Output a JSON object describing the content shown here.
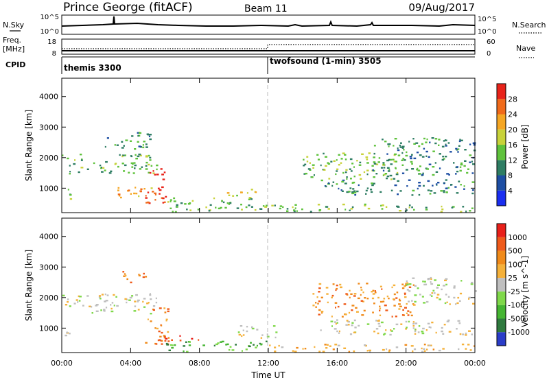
{
  "header": {
    "station": "Prince George (fitACF)",
    "beam": "Beam 11",
    "date": "09/Aug/2017"
  },
  "top_panels": {
    "nsky_label": "N.Sky",
    "nsky_ticks": [
      "10^5",
      "10^0"
    ],
    "nsearch_label": "N.Search",
    "nsearch_ticks": [
      "10^5",
      "10^0"
    ],
    "freq_label_1": "Freq.",
    "freq_label_2": "[MHz]",
    "freq_ticks": [
      "18",
      "8"
    ],
    "nave_label": "Nave",
    "nave_ticks": [
      "60",
      "0"
    ],
    "cpid_label": "CPID",
    "cpid_segments": [
      {
        "name": "themis 3300",
        "start_hour": 0
      },
      {
        "name": "twofsound (1-min) 3505",
        "start_hour": 12
      }
    ]
  },
  "chart_data": [
    {
      "type": "heatmap",
      "quantity": "power",
      "ylabel": "Slant Range [km]",
      "yticks": [
        1000,
        2000,
        3000,
        4000
      ],
      "ylim": [
        200,
        4600
      ],
      "xlim_hours": [
        0,
        24
      ],
      "colorbar_label": "Power [dB]",
      "colorbar_ticks": [
        "4",
        "8",
        "12",
        "16",
        "20",
        "24",
        "28"
      ],
      "colorbar_colors": [
        "#1a2ef0",
        "#1d4ea3",
        "#2e7d63",
        "#5fc23c",
        "#c8d23a",
        "#f5a623",
        "#f06a1a",
        "#e8231a"
      ],
      "echo_regions": [
        {
          "t0": 0.0,
          "t1": 5.5,
          "r0": 1500,
          "r1": 2150,
          "level": 3
        },
        {
          "t0": 2.5,
          "t1": 5.2,
          "r0": 2300,
          "r1": 2900,
          "level": 2
        },
        {
          "t0": 4.8,
          "t1": 6.0,
          "r0": 500,
          "r1": 1700,
          "level": 7
        },
        {
          "t0": 3.0,
          "t1": 5.5,
          "r0": 700,
          "r1": 1100,
          "level": 5
        },
        {
          "t0": 0.0,
          "t1": 0.6,
          "r0": 600,
          "r1": 1000,
          "level": 3
        },
        {
          "t0": 9.5,
          "t1": 11.5,
          "r0": 700,
          "r1": 1000,
          "level": 4
        },
        {
          "t0": 12.0,
          "t1": 24.0,
          "r0": 250,
          "r1": 500,
          "level": 3
        },
        {
          "t0": 14.0,
          "t1": 19.5,
          "r0": 1300,
          "r1": 2200,
          "level": 3
        },
        {
          "t0": 15.0,
          "t1": 24.0,
          "r0": 800,
          "r1": 1300,
          "level": 2
        },
        {
          "t0": 18.0,
          "t1": 24.0,
          "r0": 1400,
          "r1": 2700,
          "level": 2
        },
        {
          "t0": 6.0,
          "t1": 12.0,
          "r0": 250,
          "r1": 700,
          "level": 3
        }
      ]
    },
    {
      "type": "heatmap",
      "quantity": "velocity",
      "ylabel": "Slant Range [km]",
      "yticks": [
        1000,
        2000,
        3000,
        4000
      ],
      "ylim": [
        200,
        4600
      ],
      "xlim_hours": [
        0,
        24
      ],
      "xticks": [
        "00:00",
        "04:00",
        "08:00",
        "12:00",
        "16:00",
        "20:00",
        "00:00"
      ],
      "xlabel": "Time UT",
      "colorbar_label": "Velocity [m s^-1]",
      "colorbar_ticks": [
        "1000",
        "500",
        "100",
        "25",
        "-25",
        "-100",
        "-500",
        "-1000"
      ],
      "colorbar_colors": [
        "#2a3cc8",
        "#2f7a3e",
        "#45b532",
        "#7fd84a",
        "#bfbfbf",
        "#f5b13a",
        "#f08a1a",
        "#ef5a1a",
        "#e8201a"
      ],
      "echo_regions": [
        {
          "t0": 0.0,
          "t1": 5.5,
          "r0": 1500,
          "r1": 2150,
          "level": 4
        },
        {
          "t0": 3.5,
          "t1": 5.0,
          "r0": 2500,
          "r1": 2900,
          "level": 6
        },
        {
          "t0": 4.8,
          "t1": 6.2,
          "r0": 500,
          "r1": 1700,
          "level": 6
        },
        {
          "t0": 5.5,
          "t1": 8.0,
          "r0": 600,
          "r1": 800,
          "level": 7
        },
        {
          "t0": 0.0,
          "t1": 0.6,
          "r0": 600,
          "r1": 1000,
          "level": 4
        },
        {
          "t0": 10.0,
          "t1": 12.5,
          "r0": 700,
          "r1": 1100,
          "level": 4
        },
        {
          "t0": 12.0,
          "t1": 24.0,
          "r0": 250,
          "r1": 500,
          "level": 5
        },
        {
          "t0": 14.5,
          "t1": 20.5,
          "r0": 1400,
          "r1": 2500,
          "level": 6
        },
        {
          "t0": 15.0,
          "t1": 24.0,
          "r0": 800,
          "r1": 1300,
          "level": 4
        },
        {
          "t0": 20.0,
          "t1": 24.0,
          "r0": 1800,
          "r1": 2700,
          "level": 4
        },
        {
          "t0": 6.0,
          "t1": 12.0,
          "r0": 250,
          "r1": 600,
          "level": 2
        }
      ]
    }
  ]
}
